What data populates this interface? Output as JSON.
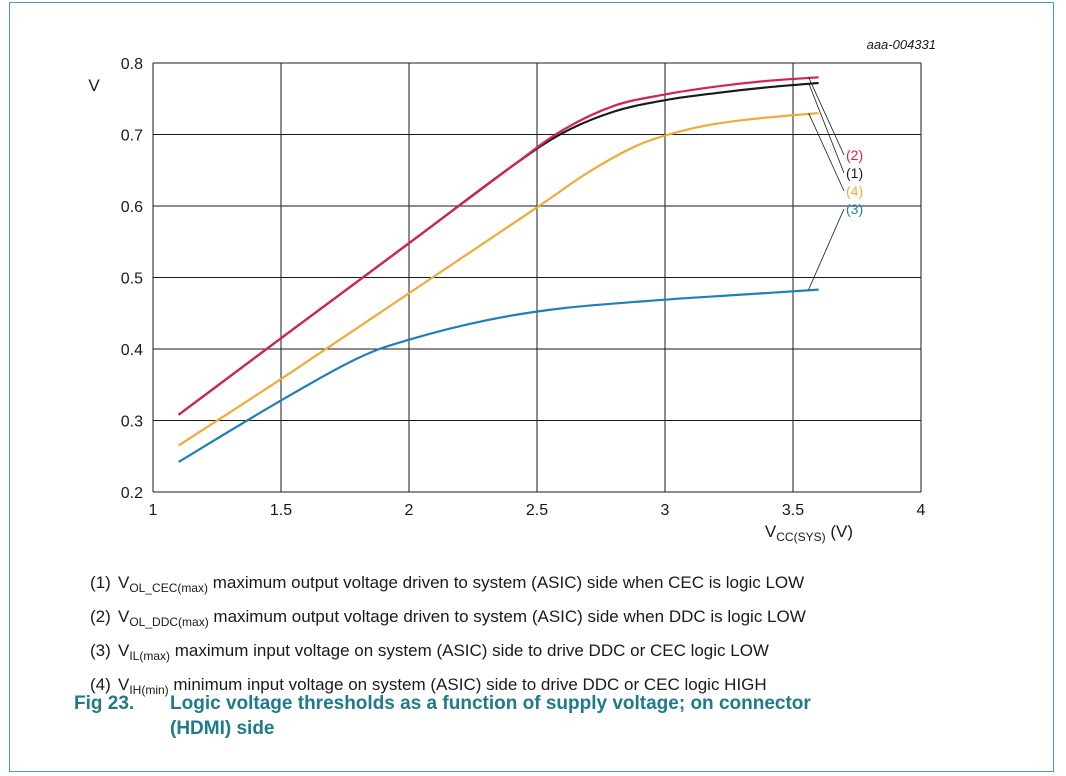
{
  "chart_data": {
    "type": "line",
    "figure_id": "aaa-004331",
    "ylabel": "V",
    "xlabel_main": "V",
    "xlabel_sub": "CC(SYS)",
    "xlabel_unit": " (V)",
    "xlim": [
      1,
      4
    ],
    "ylim": [
      0.2,
      0.8
    ],
    "xticks": [
      "1",
      "1.5",
      "2",
      "2.5",
      "3",
      "3.5",
      "4"
    ],
    "yticks": [
      "0.2",
      "0.3",
      "0.4",
      "0.5",
      "0.6",
      "0.7",
      "0.8"
    ],
    "grid": true,
    "series": [
      {
        "label": "(1)",
        "color": "#1a1a1a",
        "x": [
          1.1,
          1.5,
          2.0,
          2.4,
          2.6,
          2.8,
          3.0,
          3.2,
          3.4,
          3.6
        ],
        "y": [
          0.308,
          0.415,
          0.548,
          0.655,
          0.702,
          0.732,
          0.748,
          0.758,
          0.766,
          0.772
        ]
      },
      {
        "label": "(2)",
        "color": "#d6224f",
        "x": [
          1.1,
          1.5,
          2.0,
          2.4,
          2.6,
          2.8,
          3.0,
          3.2,
          3.4,
          3.6
        ],
        "y": [
          0.308,
          0.415,
          0.548,
          0.655,
          0.706,
          0.74,
          0.756,
          0.767,
          0.775,
          0.78
        ]
      },
      {
        "label": "(3)",
        "color": "#1f80b8",
        "x": [
          1.1,
          1.5,
          1.8,
          2.0,
          2.3,
          2.6,
          3.0,
          3.3,
          3.6
        ],
        "y": [
          0.242,
          0.328,
          0.387,
          0.413,
          0.44,
          0.457,
          0.469,
          0.476,
          0.483
        ]
      },
      {
        "label": "(4)",
        "color": "#f2a93a",
        "x": [
          1.1,
          1.5,
          2.0,
          2.5,
          2.7,
          2.9,
          3.1,
          3.3,
          3.6
        ],
        "y": [
          0.265,
          0.358,
          0.478,
          0.598,
          0.647,
          0.686,
          0.708,
          0.72,
          0.73
        ]
      }
    ]
  },
  "legend": [
    {
      "num": "(1)",
      "var": "V",
      "sub": "OL_CEC(max)",
      "text": " maximum output voltage driven to system (ASIC) side when CEC is logic LOW"
    },
    {
      "num": "(2)",
      "var": "V",
      "sub": "OL_DDC(max)",
      "text": " maximum output voltage driven to system (ASIC) side when DDC is logic LOW"
    },
    {
      "num": "(3)",
      "var": "V",
      "sub": "IL(max)",
      "text": " maximum input voltage on system (ASIC) side to drive DDC or CEC logic LOW"
    },
    {
      "num": "(4)",
      "var": "V",
      "sub": "IH(min)",
      "text": " minimum input voltage on system (ASIC) side to drive DDC or CEC logic HIGH"
    }
  ],
  "caption": {
    "fig": "Fig 23.",
    "text1": "Logic voltage thresholds as a function of supply voltage; on connector",
    "text2": "(HDMI) side"
  }
}
